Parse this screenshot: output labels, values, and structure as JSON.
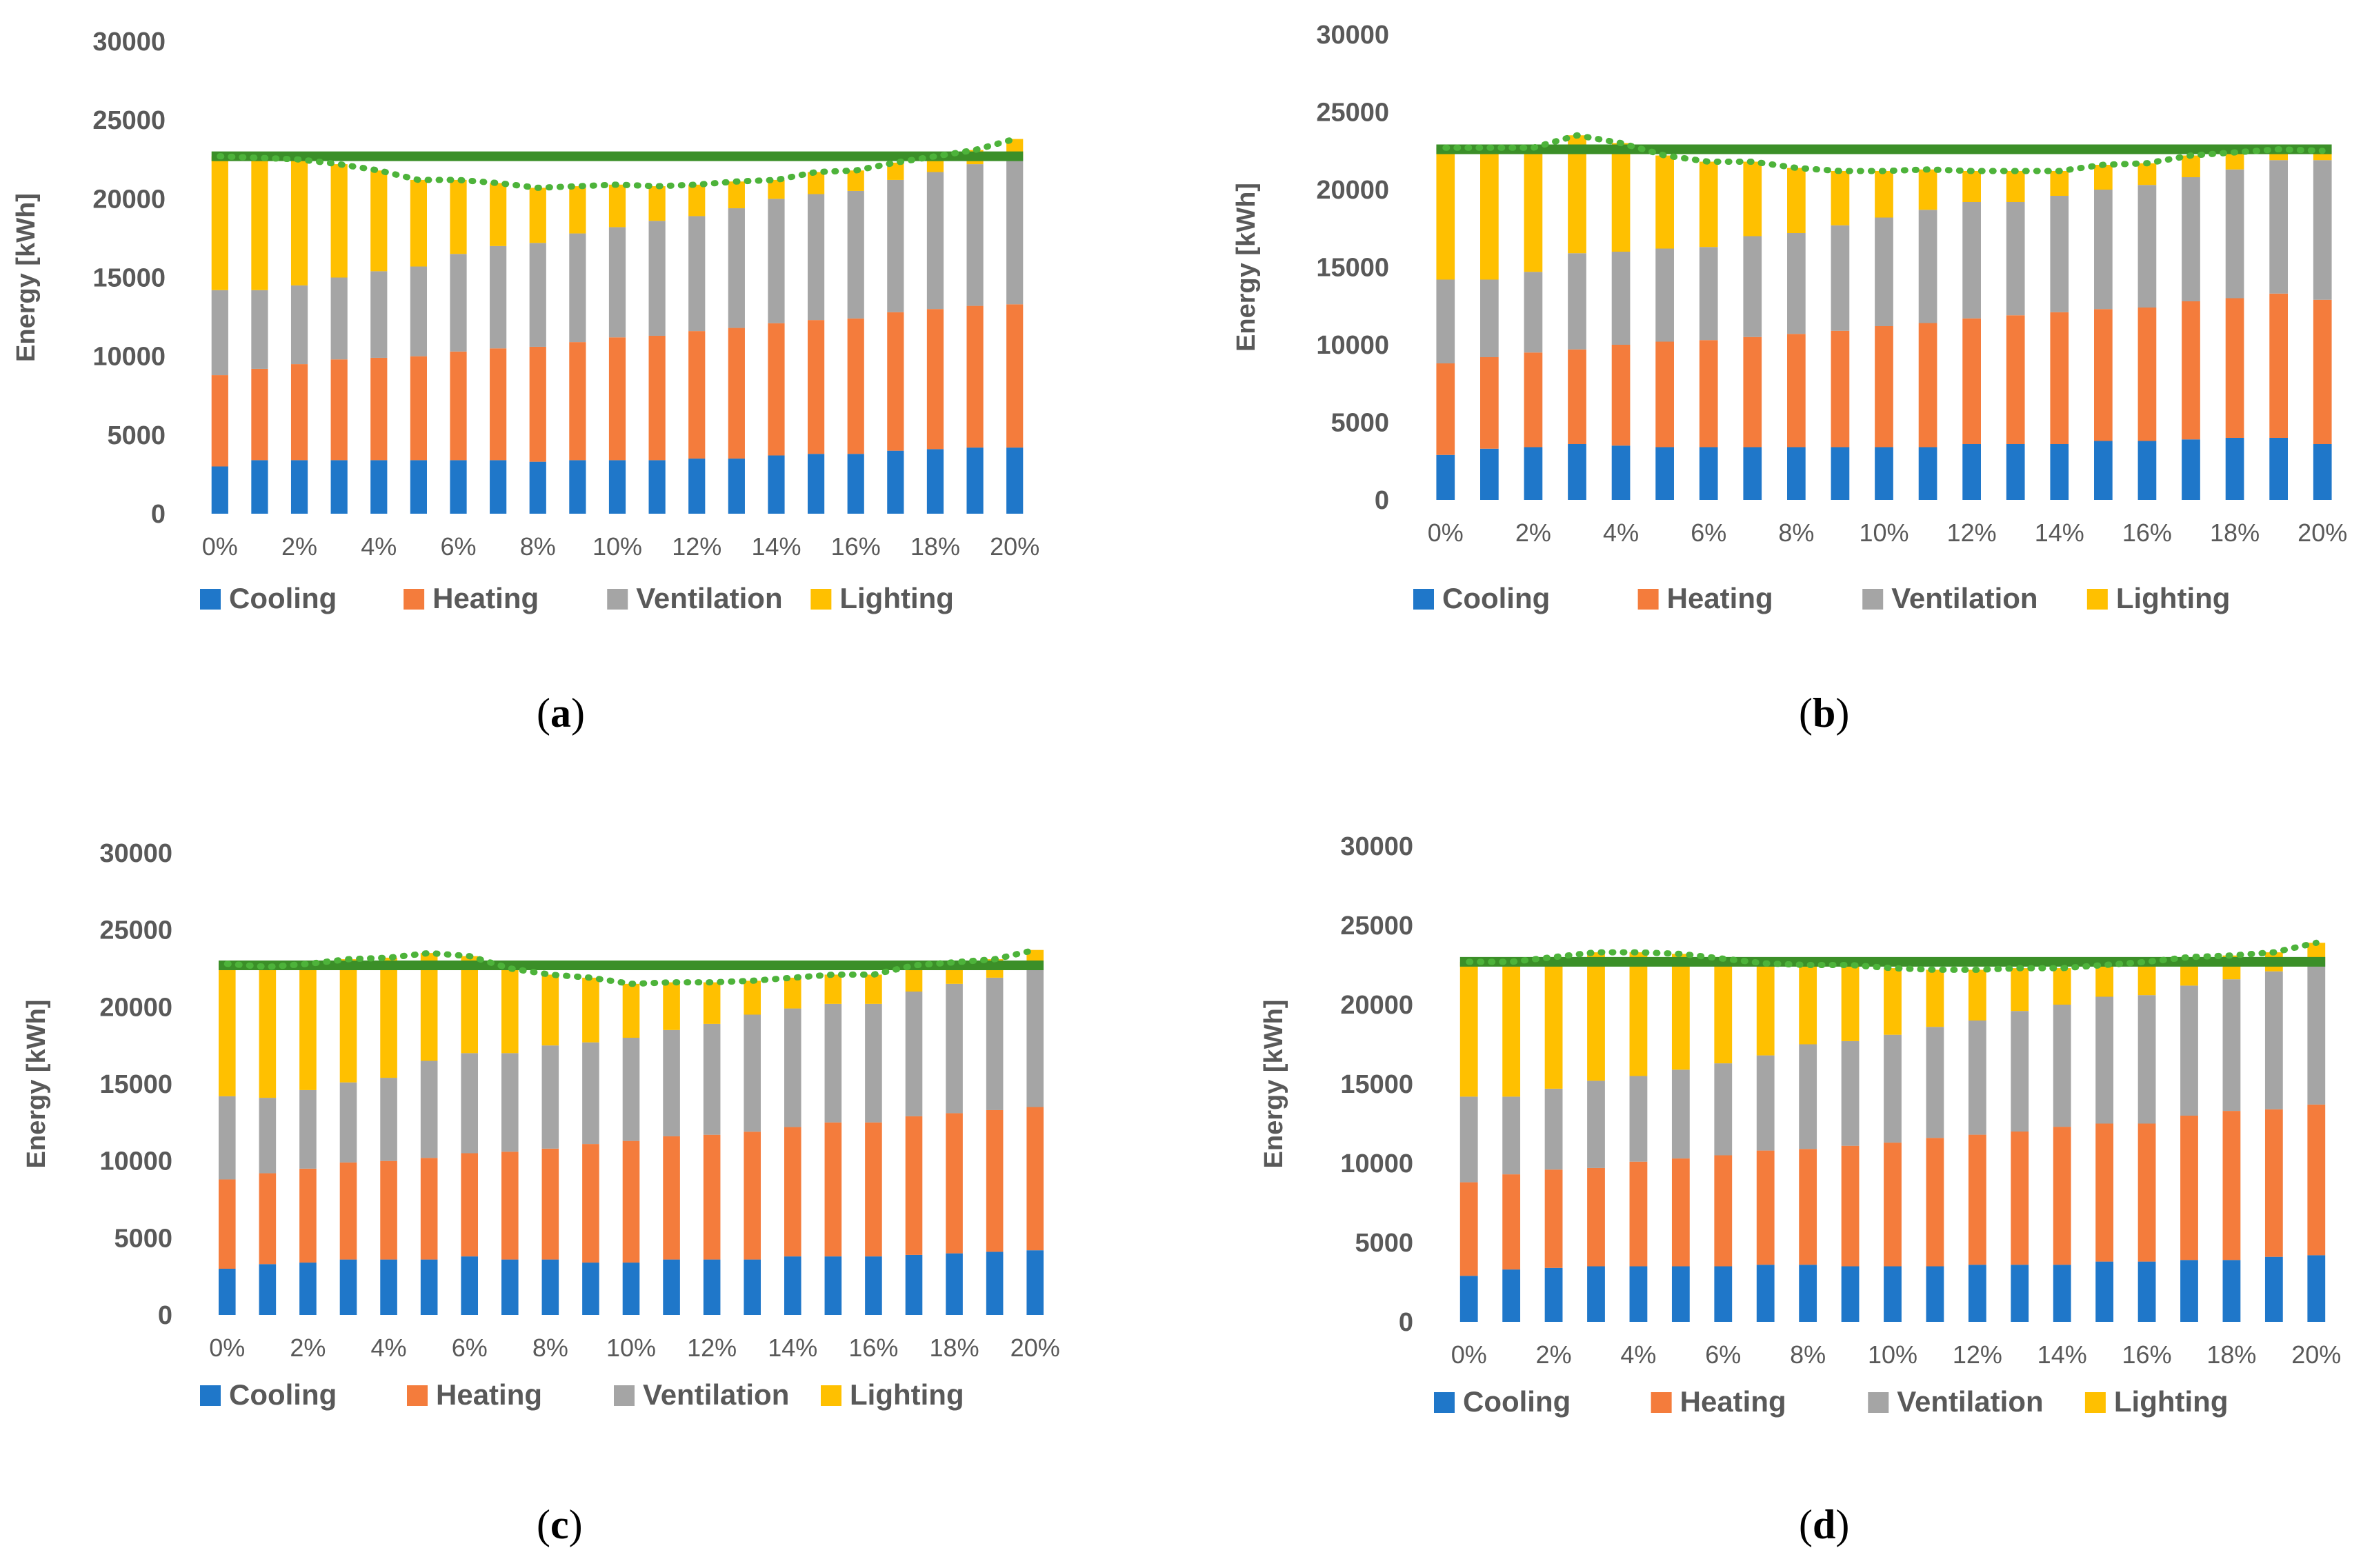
{
  "charts": {
    "a": {
      "caption_open": "(",
      "caption_letter": "a",
      "caption_close": ")"
    },
    "b": {
      "caption_open": "(",
      "caption_letter": "b",
      "caption_close": ")"
    },
    "c": {
      "caption_open": "(",
      "caption_letter": "c",
      "caption_close": ")"
    },
    "d": {
      "caption_open": "(",
      "caption_letter": "d",
      "caption_close": ")"
    }
  },
  "chart_data": [
    {
      "id": "a",
      "type": "bar",
      "stacked": true,
      "ylabel": "Energy [kWh]",
      "xlabel": "",
      "ylim": [
        0,
        30000
      ],
      "yticks": [
        0,
        5000,
        10000,
        15000,
        20000,
        25000,
        30000
      ],
      "categories": [
        "0%",
        "1%",
        "2%",
        "3%",
        "4%",
        "5%",
        "6%",
        "7%",
        "8%",
        "9%",
        "10%",
        "11%",
        "12%",
        "13%",
        "14%",
        "15%",
        "16%",
        "17%",
        "18%",
        "19%",
        "20%"
      ],
      "xtick_labels_shown": [
        "0%",
        "2%",
        "4%",
        "6%",
        "8%",
        "10%",
        "12%",
        "14%",
        "16%",
        "18%",
        "20%"
      ],
      "legend_position": "bottom",
      "series": [
        {
          "name": "Cooling",
          "color": "#1F77C9",
          "values": [
            3000,
            3400,
            3400,
            3400,
            3400,
            3400,
            3400,
            3400,
            3300,
            3400,
            3400,
            3400,
            3500,
            3500,
            3700,
            3800,
            3800,
            4000,
            4100,
            4200,
            4200
          ]
        },
        {
          "name": "Heating",
          "color": "#F47C3C",
          "values": [
            5800,
            5800,
            6100,
            6400,
            6500,
            6600,
            6900,
            7100,
            7300,
            7500,
            7800,
            7900,
            8100,
            8300,
            8400,
            8500,
            8600,
            8800,
            8900,
            9000,
            9100
          ]
        },
        {
          "name": "Ventilation",
          "color": "#A5A5A5",
          "values": [
            5400,
            5000,
            5000,
            5200,
            5500,
            5700,
            6200,
            6500,
            6600,
            6900,
            7000,
            7300,
            7300,
            7600,
            7900,
            8000,
            8100,
            8400,
            8700,
            9000,
            9300
          ]
        },
        {
          "name": "Lighting",
          "color": "#FFC000",
          "values": [
            8500,
            8400,
            8000,
            7200,
            6400,
            5500,
            4700,
            4000,
            3500,
            3000,
            2700,
            2200,
            2000,
            1700,
            1200,
            1400,
            1300,
            1100,
            1000,
            900,
            1200
          ]
        }
      ],
      "reference_line": {
        "value": 22700,
        "color": "#3B8F28"
      },
      "trend_line_color": "#4DB33A"
    },
    {
      "id": "b",
      "type": "bar",
      "stacked": true,
      "ylabel": "Energy [kWh]",
      "xlabel": "",
      "ylim": [
        0,
        30000
      ],
      "yticks": [
        0,
        5000,
        10000,
        15000,
        20000,
        25000,
        30000
      ],
      "categories": [
        "0%",
        "1%",
        "2%",
        "3%",
        "4%",
        "5%",
        "6%",
        "7%",
        "8%",
        "9%",
        "10%",
        "11%",
        "12%",
        "13%",
        "14%",
        "15%",
        "16%",
        "17%",
        "18%",
        "19%",
        "20%"
      ],
      "xtick_labels_shown": [
        "0%",
        "2%",
        "4%",
        "6%",
        "8%",
        "10%",
        "12%",
        "14%",
        "16%",
        "18%",
        "20%"
      ],
      "legend_position": "bottom",
      "series": [
        {
          "name": "Cooling",
          "color": "#1F77C9",
          "values": [
            2900,
            3300,
            3400,
            3600,
            3500,
            3400,
            3400,
            3400,
            3400,
            3400,
            3400,
            3400,
            3600,
            3600,
            3600,
            3800,
            3800,
            3900,
            4000,
            4000,
            3600
          ]
        },
        {
          "name": "Heating",
          "color": "#F47C3C",
          "values": [
            5900,
            5900,
            6100,
            6100,
            6500,
            6800,
            6900,
            7100,
            7300,
            7500,
            7800,
            8000,
            8100,
            8300,
            8500,
            8500,
            8600,
            8900,
            9000,
            9300,
            9300
          ]
        },
        {
          "name": "Ventilation",
          "color": "#A5A5A5",
          "values": [
            5400,
            5000,
            5200,
            6200,
            6000,
            6000,
            6000,
            6500,
            6500,
            6800,
            7000,
            7300,
            7500,
            7300,
            7500,
            7700,
            7900,
            8000,
            8300,
            8600,
            9000
          ]
        },
        {
          "name": "Lighting",
          "color": "#FFC000",
          "values": [
            8500,
            8500,
            8000,
            7600,
            7000,
            6000,
            5500,
            4800,
            4200,
            3500,
            3000,
            2600,
            2000,
            2000,
            1600,
            1600,
            1400,
            1400,
            1100,
            700,
            600
          ]
        }
      ],
      "reference_line": {
        "value": 22600,
        "color": "#3B8F28"
      },
      "trend_line_color": "#4DB33A"
    },
    {
      "id": "c",
      "type": "bar",
      "stacked": true,
      "ylabel": "Energy [kWh]",
      "xlabel": "",
      "ylim": [
        0,
        30000
      ],
      "yticks": [
        0,
        5000,
        10000,
        15000,
        20000,
        25000,
        30000
      ],
      "categories": [
        "0%",
        "1%",
        "2%",
        "3%",
        "4%",
        "5%",
        "6%",
        "7%",
        "8%",
        "9%",
        "10%",
        "11%",
        "12%",
        "13%",
        "14%",
        "15%",
        "16%",
        "17%",
        "18%",
        "19%",
        "20%"
      ],
      "xtick_labels_shown": [
        "0%",
        "2%",
        "4%",
        "6%",
        "8%",
        "10%",
        "12%",
        "14%",
        "16%",
        "18%",
        "20%"
      ],
      "legend_position": "bottom",
      "series": [
        {
          "name": "Cooling",
          "color": "#1F77C9",
          "values": [
            3000,
            3300,
            3400,
            3600,
            3600,
            3600,
            3800,
            3600,
            3600,
            3400,
            3400,
            3600,
            3600,
            3600,
            3800,
            3800,
            3800,
            3900,
            4000,
            4100,
            4200
          ]
        },
        {
          "name": "Heating",
          "color": "#F47C3C",
          "values": [
            5800,
            5900,
            6100,
            6300,
            6400,
            6600,
            6700,
            7000,
            7200,
            7700,
            7900,
            8000,
            8100,
            8300,
            8400,
            8700,
            8700,
            9000,
            9100,
            9200,
            9300
          ]
        },
        {
          "name": "Ventilation",
          "color": "#A5A5A5",
          "values": [
            5400,
            4900,
            5100,
            5200,
            5400,
            6300,
            6500,
            6400,
            6700,
            6600,
            6700,
            6900,
            7200,
            7600,
            7700,
            7700,
            7700,
            8100,
            8400,
            8600,
            9100
          ]
        },
        {
          "name": "Lighting",
          "color": "#FFC000",
          "values": [
            8600,
            8500,
            8200,
            8000,
            7800,
            7000,
            6300,
            5500,
            4600,
            4200,
            3500,
            3100,
            2700,
            2200,
            2000,
            1900,
            1900,
            1700,
            1400,
            1200,
            1100
          ]
        }
      ],
      "reference_line": {
        "value": 22700,
        "color": "#3B8F28"
      },
      "trend_line_color": "#4DB33A"
    },
    {
      "id": "d",
      "type": "bar",
      "stacked": true,
      "ylabel": "Energy [kWh]",
      "xlabel": "",
      "ylim": [
        0,
        30000
      ],
      "yticks": [
        0,
        5000,
        10000,
        15000,
        20000,
        25000,
        30000
      ],
      "categories": [
        "0%",
        "1%",
        "2%",
        "3%",
        "4%",
        "5%",
        "6%",
        "7%",
        "8%",
        "9%",
        "10%",
        "11%",
        "12%",
        "13%",
        "14%",
        "15%",
        "16%",
        "17%",
        "18%",
        "19%",
        "20%"
      ],
      "xtick_labels_shown": [
        "0%",
        "2%",
        "4%",
        "6%",
        "8%",
        "10%",
        "12%",
        "14%",
        "16%",
        "18%",
        "20%"
      ],
      "legend_position": "bottom",
      "series": [
        {
          "name": "Cooling",
          "color": "#1F77C9",
          "values": [
            2900,
            3300,
            3400,
            3500,
            3500,
            3500,
            3500,
            3600,
            3600,
            3500,
            3500,
            3500,
            3600,
            3600,
            3600,
            3800,
            3800,
            3900,
            3900,
            4100,
            4200
          ]
        },
        {
          "name": "Heating",
          "color": "#F47C3C",
          "values": [
            5900,
            6000,
            6200,
            6200,
            6600,
            6800,
            7000,
            7200,
            7300,
            7600,
            7800,
            8100,
            8200,
            8400,
            8700,
            8700,
            8700,
            9100,
            9400,
            9300,
            9500
          ]
        },
        {
          "name": "Ventilation",
          "color": "#A5A5A5",
          "values": [
            5400,
            4900,
            5100,
            5500,
            5400,
            5600,
            5800,
            6000,
            6600,
            6600,
            6800,
            7000,
            7200,
            7600,
            7700,
            8000,
            8100,
            8200,
            8300,
            8700,
            9000
          ]
        },
        {
          "name": "Lighting",
          "color": "#FFC000",
          "values": [
            8500,
            8500,
            8300,
            8100,
            7800,
            7300,
            6600,
            5800,
            5000,
            4800,
            4200,
            3600,
            3200,
            2700,
            2300,
            2000,
            2100,
            1800,
            1500,
            1200,
            1200
          ]
        }
      ],
      "reference_line": {
        "value": 22700,
        "color": "#3B8F28"
      },
      "trend_line_color": "#4DB33A"
    }
  ]
}
